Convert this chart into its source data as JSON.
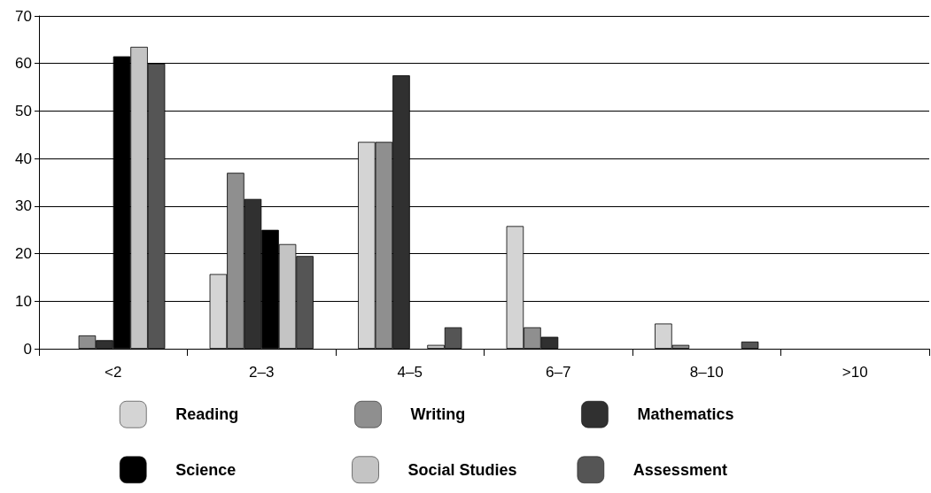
{
  "chart_data": {
    "type": "bar",
    "categories": [
      "<2",
      "2–3",
      "4–5",
      "6–7",
      "8–10",
      ">10"
    ],
    "series": [
      {
        "name": "Reading",
        "color": "#d4d4d4",
        "values": [
          0,
          15.7,
          43.5,
          25.8,
          5.3,
          0
        ]
      },
      {
        "name": "Writing",
        "color": "#8f8f8f",
        "values": [
          2.8,
          37,
          43.5,
          4.5,
          0.8,
          0
        ]
      },
      {
        "name": "Mathematics",
        "color": "#303030",
        "values": [
          1.8,
          31.5,
          57.5,
          2.5,
          0,
          0
        ]
      },
      {
        "name": "Science",
        "color": "#000000",
        "values": [
          61.5,
          25,
          0,
          0,
          0,
          0
        ]
      },
      {
        "name": "Social Studies",
        "color": "#c4c4c4",
        "values": [
          63.5,
          22,
          0.8,
          0,
          0,
          0
        ]
      },
      {
        "name": "Assessment",
        "color": "#555555",
        "values": [
          60,
          19.5,
          4.5,
          0,
          1.5,
          0
        ]
      }
    ],
    "ylim": [
      0,
      70
    ],
    "yticks": [
      0,
      10,
      20,
      30,
      40,
      50,
      60,
      70
    ],
    "grid": "y",
    "legend": "bottom"
  }
}
